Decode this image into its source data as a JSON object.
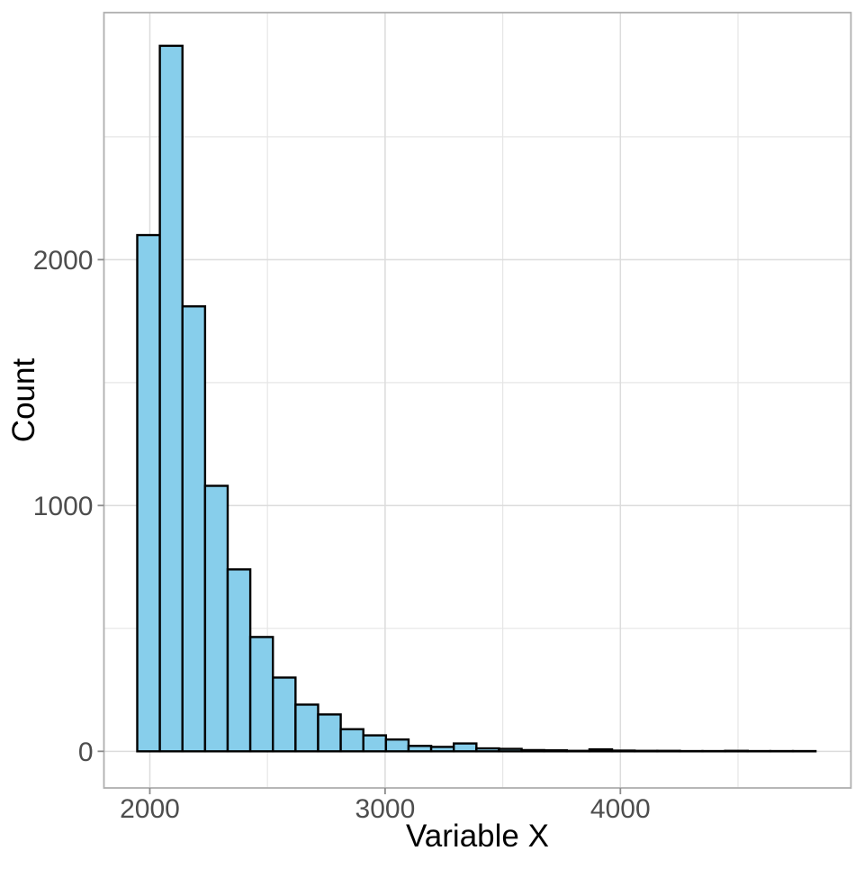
{
  "chart_data": {
    "type": "bar",
    "subtype": "histogram",
    "title": "",
    "xlabel": "Variable X",
    "ylabel": "Count",
    "bin_start": 1946.5,
    "bin_width": 96.1,
    "n_bins": 30,
    "counts": [
      2100,
      2870,
      1810,
      1080,
      740,
      465,
      300,
      190,
      150,
      90,
      65,
      48,
      22,
      18,
      32,
      12,
      10,
      5,
      4,
      2,
      8,
      3,
      2,
      2,
      1,
      1,
      2,
      1,
      1,
      1
    ],
    "xlim": [
      1805,
      4980
    ],
    "ylim": [
      -149,
      3005
    ],
    "x_ticks": [
      {
        "value": 2000,
        "label": "2000"
      },
      {
        "value": 3000,
        "label": "3000"
      },
      {
        "value": 4000,
        "label": "4000"
      }
    ],
    "y_ticks": [
      {
        "value": 0,
        "label": "0"
      },
      {
        "value": 1000,
        "label": "1000"
      },
      {
        "value": 2000,
        "label": "2000"
      }
    ],
    "x_minor_ticks": [
      2500,
      3500,
      4500
    ],
    "y_minor_ticks": [
      500,
      1500,
      2500
    ],
    "grid": "on",
    "legend": "none",
    "colors": {
      "bar_fill": "#87CEEB",
      "bar_stroke": "#000000",
      "panel_background": "#FFFFFF",
      "panel_border": "#AFAFAF",
      "grid_major": "#DCDCDC",
      "grid_minor": "#E6E6E6",
      "tick_mark": "#8C8C8C",
      "tick_label": "#4D4D4D",
      "axis_title": "#000000"
    }
  }
}
